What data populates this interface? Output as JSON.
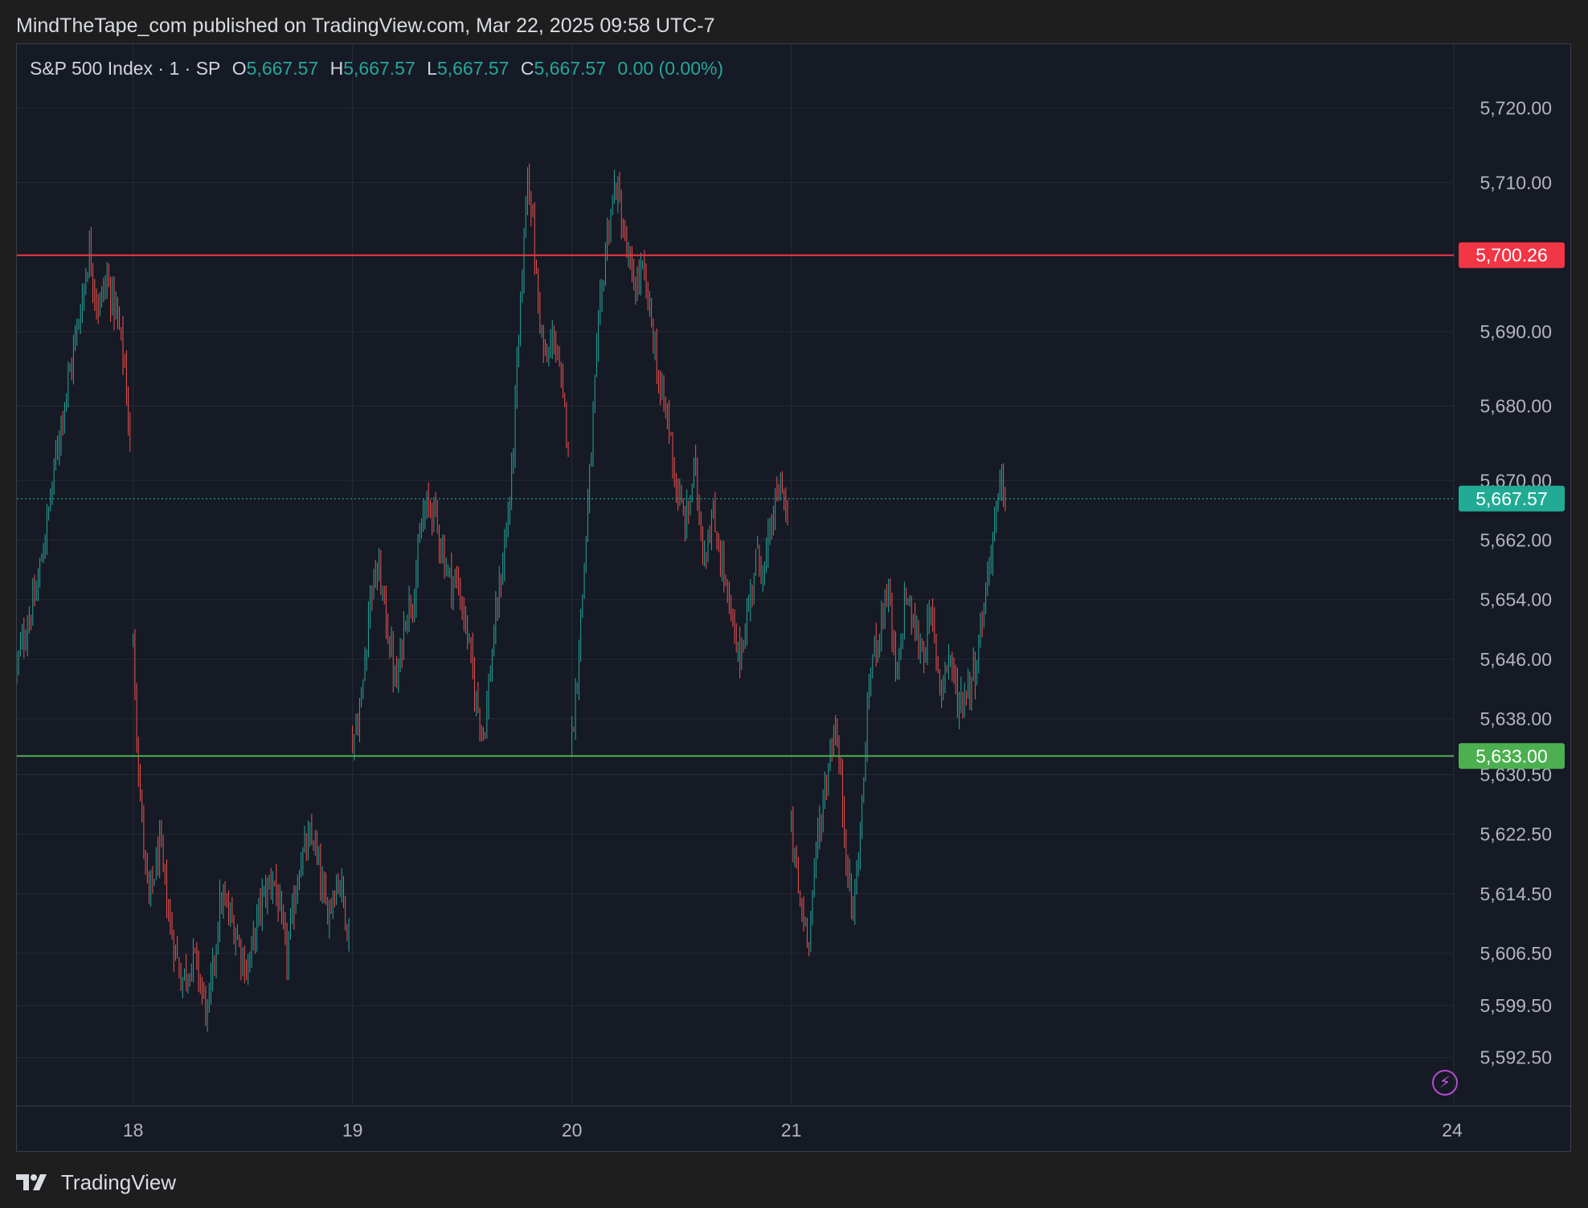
{
  "header": {
    "publisher_line": "MindTheTape_com published on TradingView.com, Mar 22, 2025 09:58 UTC-7"
  },
  "legend": {
    "symbol": "S&P 500 Index · 1 · SP",
    "o_label": "O",
    "o_value": "5,667.57",
    "h_label": "H",
    "h_value": "5,667.57",
    "l_label": "L",
    "l_value": "5,667.57",
    "c_label": "C",
    "c_value": "5,667.57",
    "change": "0.00 (0.00%)"
  },
  "footer": {
    "brand": "TradingView"
  },
  "colors": {
    "up": "#26a69a",
    "down": "#ef5350",
    "resistance": "#f23645",
    "support": "#4caf50",
    "last": "#22ab94",
    "grid": "#262b36",
    "axis_text": "#b2b5be",
    "background": "#161a25"
  },
  "icons": {
    "lightning": "lightning-icon",
    "logo": "tradingview-logo-icon"
  },
  "chart_data": {
    "type": "line",
    "symbol": "SP",
    "interval": "1",
    "x_axis": {
      "tick_labels": [
        "18",
        "19",
        "20",
        "21",
        "24"
      ],
      "range_days": [
        17.47,
        24.02
      ]
    },
    "y_axis": {
      "tick_labels": [
        "5,720.00",
        "5,710.00",
        "5,690.00",
        "5,680.00",
        "5,670.00",
        "5,662.00",
        "5,654.00",
        "5,646.00",
        "5,638.00",
        "5,630.50",
        "5,622.50",
        "5,614.50",
        "5,606.50",
        "5,599.50",
        "5,592.50"
      ],
      "tick_values": [
        5720.0,
        5710.0,
        5690.0,
        5680.0,
        5670.0,
        5662.0,
        5654.0,
        5646.0,
        5638.0,
        5630.5,
        5622.5,
        5614.5,
        5606.5,
        5599.5,
        5592.5
      ],
      "range": [
        5586.0,
        5728.6
      ],
      "grid": true
    },
    "horizontal_lines": [
      {
        "name": "resistance",
        "value": 5700.26,
        "label": "5,700.26"
      },
      {
        "name": "support",
        "value": 5633.0,
        "label": "5,633.00"
      }
    ],
    "last_price": {
      "value": 5667.57,
      "label": "5,667.57"
    },
    "series": [
      {
        "x": [
          17.47,
          17.5,
          17.56,
          17.62,
          17.67,
          17.72,
          17.77,
          17.8,
          17.84,
          17.88,
          17.92,
          17.96,
          17.99
        ],
        "y": [
          5645,
          5649,
          5655,
          5667,
          5678,
          5686,
          5695,
          5701,
          5693,
          5697,
          5693,
          5686,
          5673
        ]
      },
      {
        "x": [
          18.0,
          18.03,
          18.07,
          18.12,
          18.17,
          18.22,
          18.28,
          18.34,
          18.4,
          18.46,
          18.52,
          18.58,
          18.64,
          18.7,
          18.76,
          18.82,
          18.88,
          18.94,
          18.99
        ],
        "y": [
          5648,
          5628,
          5613,
          5621,
          5610,
          5603,
          5606,
          5598,
          5614,
          5610,
          5604,
          5613,
          5617,
          5606,
          5619,
          5622,
          5612,
          5617,
          5608
        ]
      },
      {
        "x": [
          19.0,
          19.04,
          19.08,
          19.12,
          19.16,
          19.2,
          19.24,
          19.28,
          19.32,
          19.36,
          19.4,
          19.44,
          19.48,
          19.52,
          19.56,
          19.6,
          19.64,
          19.68,
          19.72,
          19.76,
          19.8,
          19.84,
          19.88,
          19.92,
          19.96,
          19.99
        ],
        "y": [
          5635,
          5640,
          5655,
          5658,
          5650,
          5642,
          5652,
          5655,
          5665,
          5667,
          5662,
          5657,
          5656,
          5650,
          5641,
          5636,
          5648,
          5658,
          5668,
          5690,
          5713,
          5696,
          5685,
          5690,
          5680,
          5675
        ]
      },
      {
        "x": [
          20.0,
          20.04,
          20.08,
          20.12,
          20.16,
          20.2,
          20.24,
          20.28,
          20.32,
          20.36,
          20.4,
          20.44,
          20.48,
          20.52,
          20.56,
          20.6,
          20.64,
          20.68,
          20.72,
          20.76,
          20.8,
          20.84,
          20.88,
          20.92,
          20.96,
          20.99
        ],
        "y": [
          5635,
          5651,
          5670,
          5690,
          5703,
          5710,
          5702,
          5696,
          5698,
          5692,
          5682,
          5678,
          5668,
          5664,
          5672,
          5660,
          5665,
          5660,
          5652,
          5646,
          5652,
          5660,
          5658,
          5666,
          5670,
          5662
        ]
      },
      {
        "x": [
          21.0,
          21.04,
          21.08,
          21.12,
          21.16,
          21.2,
          21.24,
          21.28,
          21.32,
          21.36,
          21.4,
          21.44,
          21.48,
          21.52,
          21.56,
          21.6,
          21.64,
          21.68,
          21.72,
          21.76,
          21.8,
          21.84,
          21.88,
          21.92,
          21.96,
          21.98
        ],
        "y": [
          5623,
          5613,
          5609,
          5622,
          5630,
          5638,
          5624,
          5611,
          5625,
          5645,
          5650,
          5656,
          5642,
          5655,
          5650,
          5647,
          5652,
          5642,
          5647,
          5640,
          5642,
          5645,
          5654,
          5663,
          5670,
          5667.57
        ]
      }
    ]
  }
}
